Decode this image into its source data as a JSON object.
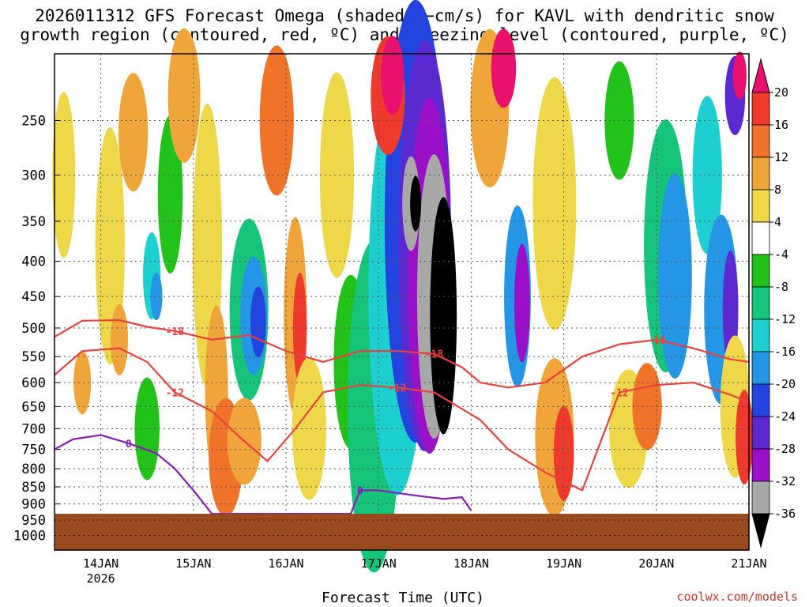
{
  "title": {
    "line1": "2026011312 GFS Forecast Omega (shaded, −cm/s) for KAVL with dendritic snow",
    "line2": "growth region (contoured, red, ºC) and freezing level (contoured, purple, ºC)"
  },
  "credit": "coolwx.com/models",
  "colors": {
    "ground": "#9a4a1f",
    "dgz_contour": "#e8403c",
    "freezing_contour": "#8a1bb8",
    "grid": "#555555"
  },
  "chart_data": {
    "type": "heatmap",
    "title": "2026011312 GFS Forecast Omega (shaded, −cm/s) for KAVL with dendritic snow growth region (contoured, red, ºC) and freezing level (contoured, purple, ºC)",
    "xlabel": "Forecast Time (UTC)",
    "ylabel": "",
    "x_ticks": [
      "14JAN",
      "15JAN",
      "16JAN",
      "17JAN",
      "18JAN",
      "19JAN",
      "20JAN",
      "21JAN"
    ],
    "x_tick_sublabel": "2026",
    "xlim_days": [
      13.5,
      21.0
    ],
    "y_ticks": [
      250,
      300,
      350,
      400,
      450,
      500,
      550,
      600,
      650,
      700,
      750,
      800,
      850,
      900,
      950,
      1000
    ],
    "ylim": [
      1050,
      200
    ],
    "grid": true,
    "colorbar": {
      "ticks": [
        20,
        16,
        12,
        8,
        4,
        -4,
        -8,
        -12,
        -16,
        -20,
        -24,
        -28,
        -32,
        -36
      ],
      "bands": [
        {
          "color": "#e8116e"
        },
        {
          "color": "#ee3a2c"
        },
        {
          "color": "#f0732a"
        },
        {
          "color": "#f0a53a"
        },
        {
          "color": "#eed84a"
        },
        {
          "color": "#ffffff"
        },
        {
          "color": "#22c21a"
        },
        {
          "color": "#16c47a"
        },
        {
          "color": "#1ecfd0"
        },
        {
          "color": "#2596e6"
        },
        {
          "color": "#2444e0"
        },
        {
          "color": "#5a2ad0"
        },
        {
          "color": "#9a10c8"
        },
        {
          "color": "#a8a8a8"
        },
        {
          "color": "#000000"
        }
      ]
    },
    "contours": [
      {
        "label": "-18",
        "series": "dendritic growth region top",
        "color": "#e8403c",
        "x": [
          13.5,
          13.8,
          14.2,
          14.5,
          14.8,
          15.2,
          15.6,
          16.0,
          16.4,
          16.8,
          17.2,
          17.6,
          17.9,
          18.1,
          18.4,
          18.8,
          19.2,
          19.6,
          20.0,
          20.4,
          20.8,
          21.0
        ],
        "y": [
          515,
          488,
          487,
          498,
          505,
          520,
          512,
          540,
          560,
          540,
          540,
          545,
          570,
          600,
          610,
          600,
          550,
          528,
          520,
          535,
          555,
          560
        ]
      },
      {
        "label": "-12",
        "series": "dendritic growth region bottom",
        "color": "#e8403c",
        "x": [
          13.5,
          13.8,
          14.2,
          14.5,
          14.8,
          15.2,
          15.5,
          15.8,
          16.1,
          16.4,
          16.8,
          17.2,
          17.6,
          17.9,
          18.1,
          18.4,
          18.8,
          19.2,
          19.6,
          20.0,
          20.4,
          20.8,
          21.0
        ],
        "y": [
          585,
          540,
          535,
          560,
          620,
          660,
          720,
          780,
          700,
          620,
          605,
          610,
          620,
          655,
          680,
          750,
          810,
          860,
          620,
          605,
          600,
          625,
          640
        ]
      },
      {
        "label": "0",
        "series": "freezing level",
        "color": "#8a1bb8",
        "x": [
          13.5,
          13.7,
          14.0,
          14.3,
          14.6,
          14.8,
          15.0,
          15.2,
          16.7,
          16.8,
          17.0,
          17.4,
          17.7,
          17.9,
          18.0
        ],
        "y": [
          750,
          725,
          715,
          735,
          760,
          800,
          860,
          930,
          930,
          860,
          860,
          875,
          885,
          880,
          920
        ]
      }
    ]
  }
}
